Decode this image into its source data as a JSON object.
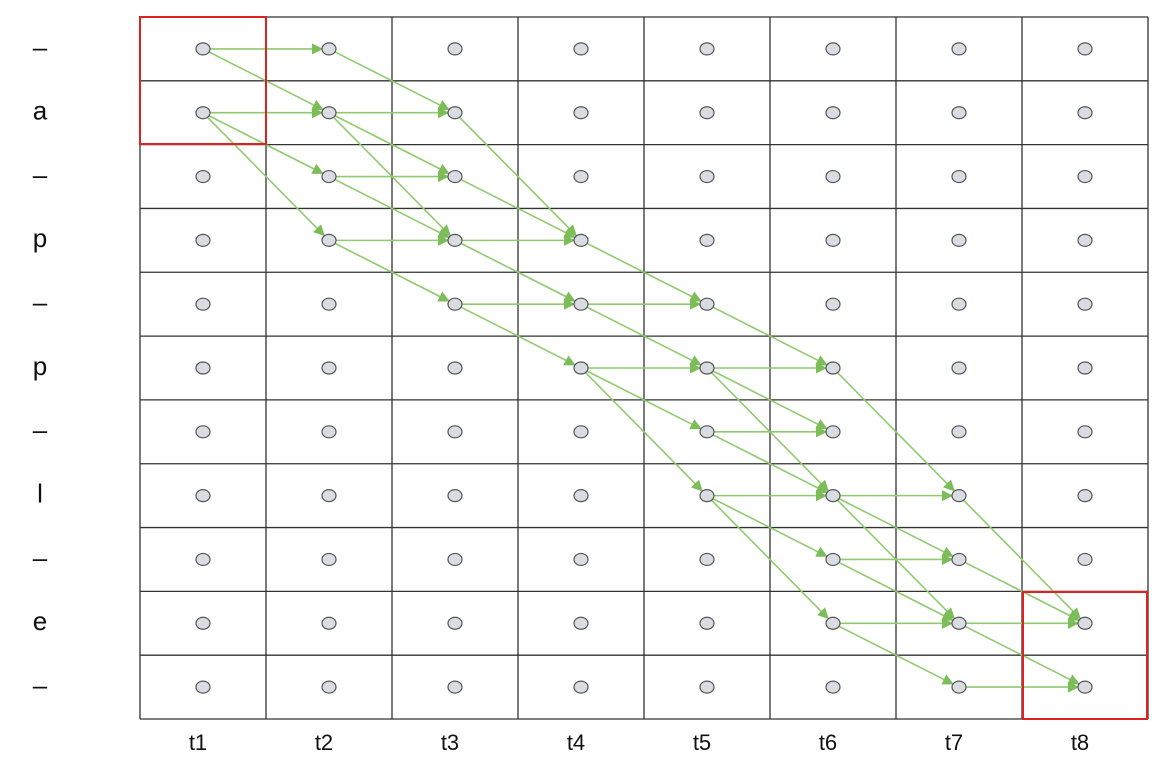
{
  "row_labels": [
    "–",
    "a",
    "–",
    "p",
    "–",
    "p",
    "–",
    "l",
    "–",
    "e",
    "–"
  ],
  "column_labels": [
    "t1",
    "t2",
    "t3",
    "t4",
    "t5",
    "t6",
    "t7",
    "t8"
  ]
}
